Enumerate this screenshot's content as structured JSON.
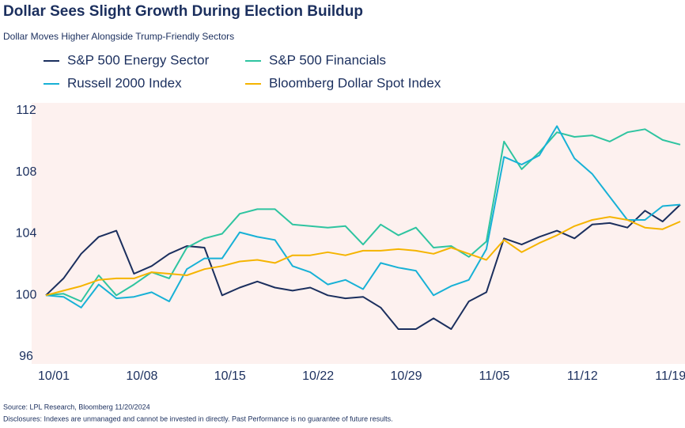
{
  "chart_data": {
    "type": "line",
    "title": "Dollar Sees Slight Growth During Election Buildup",
    "subtitle": "Dollar Moves Higher Alongside Trump-Friendly Sectors",
    "source": "Source: LPL Research, Bloomberg 11/20/2024",
    "disclosures": "Disclosures: Indexes are unmanaged and cannot be invested in directly. Past Performance is no guarantee of future results.",
    "categories": [
      "10/01",
      null,
      null,
      null,
      null,
      "10/08",
      null,
      null,
      null,
      null,
      "10/15",
      null,
      null,
      null,
      null,
      "10/22",
      null,
      null,
      null,
      null,
      "10/29",
      null,
      null,
      null,
      null,
      "11/05",
      null,
      null,
      null,
      null,
      "11/12",
      null,
      null,
      null,
      null,
      "11/19",
      null
    ],
    "series": [
      {
        "name": "S&P 500 Energy Sector",
        "color": "#1b2f5e",
        "values": [
          100,
          101.1,
          102.7,
          103.8,
          104.2,
          101.4,
          101.9,
          102.7,
          103.2,
          103.1,
          100,
          100.5,
          100.9,
          100.5,
          100.3,
          100.5,
          100,
          99.8,
          99.9,
          99.2,
          97.8,
          97.8,
          98.5,
          97.8,
          99.6,
          100.2,
          103.7,
          103.3,
          103.8,
          104.2,
          103.7,
          104.6,
          104.7,
          104.4,
          105.5,
          104.8,
          105.9
        ]
      },
      {
        "name": "S&P 500 Financials",
        "color": "#2ec4a0",
        "values": [
          100,
          100.1,
          99.6,
          101.3,
          100,
          100.7,
          101.5,
          101.1,
          103.1,
          103.7,
          104,
          105.3,
          105.6,
          105.6,
          104.6,
          104.5,
          104.4,
          104.5,
          103.3,
          104.6,
          103.9,
          104.4,
          103.1,
          103.2,
          102.5,
          103.5,
          110,
          108.2,
          109.3,
          110.6,
          110.3,
          110.4,
          110,
          110.6,
          110.8,
          110.1,
          109.8
        ]
      },
      {
        "name": "Russell 2000 Index",
        "color": "#17b1d6",
        "values": [
          100,
          99.9,
          99.2,
          100.7,
          99.8,
          99.9,
          100.2,
          99.6,
          101.7,
          102.4,
          102.4,
          104.1,
          103.8,
          103.6,
          101.9,
          101.5,
          100.7,
          101,
          100.4,
          102.1,
          101.8,
          101.6,
          100,
          100.6,
          101,
          103,
          109,
          108.5,
          109.1,
          111,
          108.9,
          107.9,
          106.4,
          104.9,
          104.9,
          105.8,
          105.9
        ]
      },
      {
        "name": "Bloomberg Dollar Spot Index",
        "color": "#f5b400",
        "values": [
          100,
          100.3,
          100.6,
          101,
          101.1,
          101.1,
          101.5,
          101.4,
          101.3,
          101.7,
          101.9,
          102.2,
          102.3,
          102.1,
          102.6,
          102.6,
          102.8,
          102.6,
          102.9,
          102.9,
          103,
          102.9,
          102.7,
          103.1,
          102.7,
          102.3,
          103.6,
          102.8,
          103.4,
          103.9,
          104.5,
          104.9,
          105.1,
          104.9,
          104.4,
          104.3,
          104.8
        ]
      }
    ],
    "ylim": [
      96,
      112
    ],
    "yticks": [
      96,
      100,
      104,
      108,
      112
    ],
    "grid": false
  }
}
